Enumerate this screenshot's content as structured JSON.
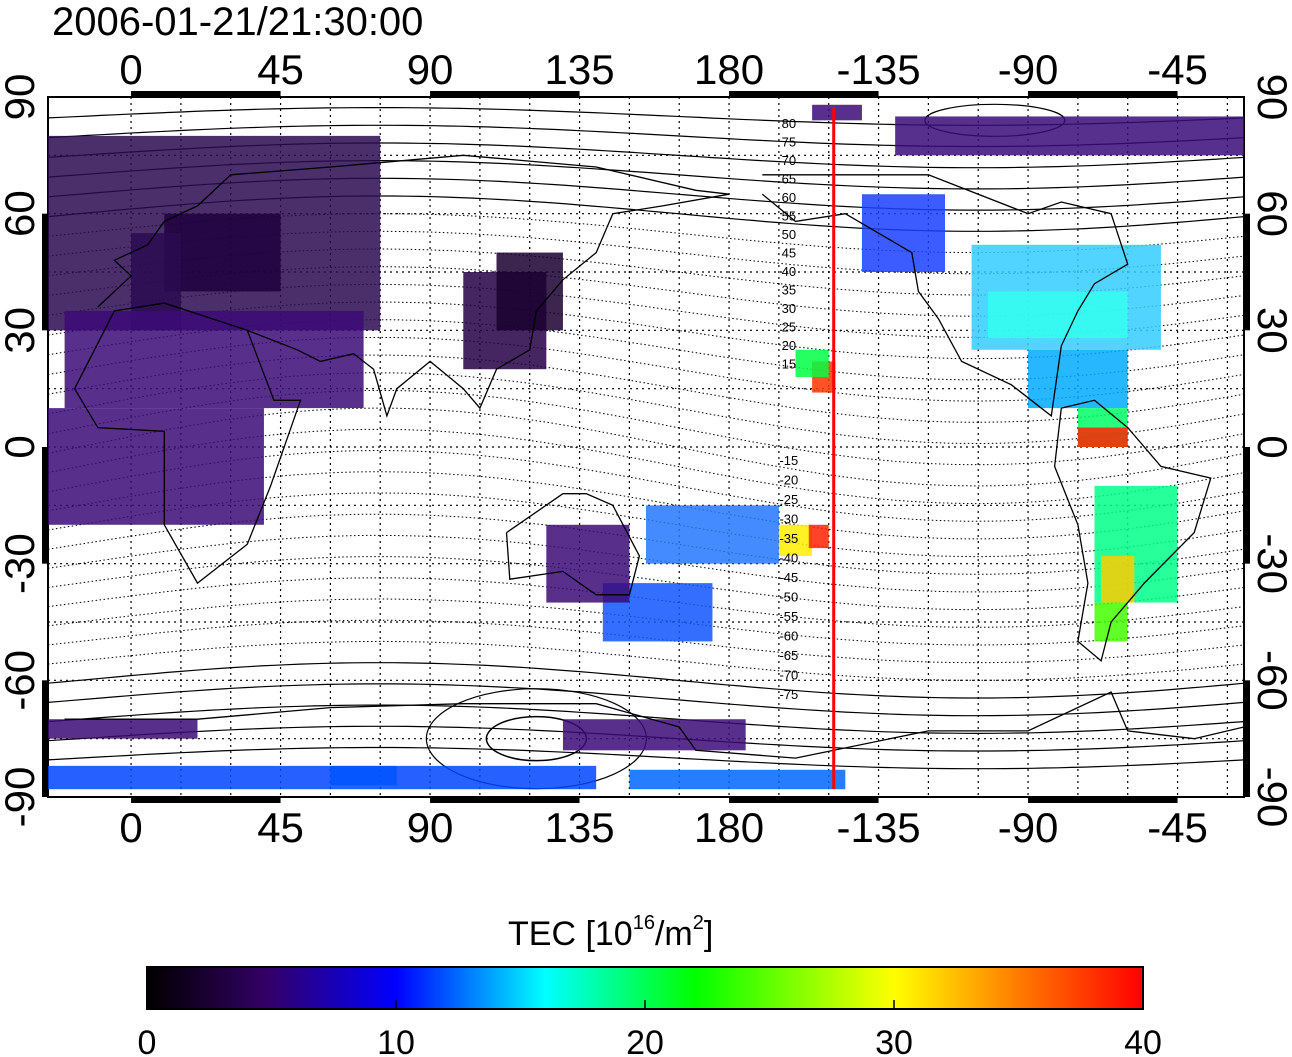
{
  "title": "2006-01-21/21:30:00",
  "map": {
    "lon_ticks_top": [
      "0",
      "45",
      "90",
      "135",
      "180",
      "-135",
      "-90",
      "-45"
    ],
    "lon_ticks_bottom": [
      "0",
      "45",
      "90",
      "135",
      "180",
      "-135",
      "-90",
      "-45"
    ],
    "lat_ticks_left": [
      "90",
      "60",
      "30",
      "0",
      "-30",
      "-60",
      "-90"
    ],
    "lat_ticks_right": [
      "90",
      "60",
      "30",
      "0",
      "-30",
      "-60",
      "-90"
    ],
    "lon_range": [
      -25,
      335
    ],
    "lat_range": [
      -90,
      90
    ],
    "grid": true,
    "meridian_marker_lon": 211.5,
    "meridian_marker_color": "#ff0000",
    "contour_labels_north": [
      "80",
      "75",
      "70",
      "65",
      "60",
      "55",
      "50",
      "45",
      "40",
      "35",
      "30",
      "25",
      "20",
      "15"
    ],
    "contour_labels_south": [
      "-15",
      "-20",
      "-25",
      "-30",
      "-35",
      "-40",
      "-45",
      "-50",
      "-55",
      "-60",
      "-65",
      "-70",
      "-75"
    ]
  },
  "colorbar": {
    "label_main": "TEC  [10",
    "label_sup1": "16",
    "label_mid": "/m",
    "label_sup2": "2",
    "label_end": "]",
    "ticks": [
      "0",
      "10",
      "20",
      "30",
      "40"
    ],
    "range": [
      0,
      40
    ],
    "colors": [
      "#000000",
      "#3c0070",
      "#0000ff",
      "#00ffff",
      "#00ff00",
      "#ffff00",
      "#ff0000"
    ]
  }
}
